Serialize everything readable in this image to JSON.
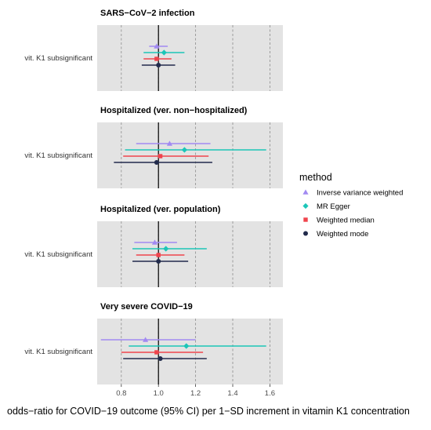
{
  "chart_data": {
    "type": "forest",
    "xlabel": "odds−ratio for COVID−19 outcome (95% CI) per 1−SD increment in vitamin K1 concentration",
    "xlim": [
      0.67,
      1.67
    ],
    "x_ticks": [
      0.8,
      1.0,
      1.2,
      1.4,
      1.6
    ],
    "x_tick_labels": [
      "0.8",
      "1.0",
      "1.2",
      "1.4",
      "1.6"
    ],
    "reference_line": 1.0,
    "grid": true,
    "legend_placement": "right",
    "legend_title": "method",
    "methods": [
      {
        "name": "Inverse variance weighted",
        "color": "#A28AF2",
        "marker": "triangle"
      },
      {
        "name": "MR Egger",
        "color": "#1CC6B8",
        "marker": "diamond"
      },
      {
        "name": "Weighted median",
        "color": "#F0444D",
        "marker": "square"
      },
      {
        "name": "Weighted mode",
        "color": "#222B4C",
        "marker": "circle"
      }
    ],
    "panels": [
      {
        "title": "SARS−CoV−2 infection",
        "row_label": "vit. K1 subsignificant",
        "estimates": [
          {
            "method": "Inverse variance weighted",
            "or": 0.99,
            "lo": 0.95,
            "hi": 1.05
          },
          {
            "method": "MR Egger",
            "or": 1.03,
            "lo": 0.92,
            "hi": 1.14
          },
          {
            "method": "Weighted median",
            "or": 0.99,
            "lo": 0.92,
            "hi": 1.07
          },
          {
            "method": "Weighted mode",
            "or": 1.0,
            "lo": 0.91,
            "hi": 1.09
          }
        ]
      },
      {
        "title": "Hospitalized (ver. non−hospitalized)",
        "row_label": "vit. K1 subsignificant",
        "estimates": [
          {
            "method": "Inverse variance weighted",
            "or": 1.06,
            "lo": 0.88,
            "hi": 1.28
          },
          {
            "method": "MR Egger",
            "or": 1.14,
            "lo": 0.82,
            "hi": 1.58
          },
          {
            "method": "Weighted median",
            "or": 1.01,
            "lo": 0.81,
            "hi": 1.27
          },
          {
            "method": "Weighted mode",
            "or": 0.99,
            "lo": 0.76,
            "hi": 1.29
          }
        ]
      },
      {
        "title": "Hospitalized (ver. population)",
        "row_label": "vit. K1 subsignificant",
        "estimates": [
          {
            "method": "Inverse variance weighted",
            "or": 0.98,
            "lo": 0.87,
            "hi": 1.1
          },
          {
            "method": "MR Egger",
            "or": 1.04,
            "lo": 0.86,
            "hi": 1.26
          },
          {
            "method": "Weighted median",
            "or": 1.0,
            "lo": 0.88,
            "hi": 1.14
          },
          {
            "method": "Weighted mode",
            "or": 1.0,
            "lo": 0.86,
            "hi": 1.16
          }
        ]
      },
      {
        "title": "Very severe COVID−19",
        "row_label": "vit. K1 subsignificant",
        "estimates": [
          {
            "method": "Inverse variance weighted",
            "or": 0.93,
            "lo": 0.69,
            "hi": 1.2
          },
          {
            "method": "MR Egger",
            "or": 1.15,
            "lo": 0.84,
            "hi": 1.58
          },
          {
            "method": "Weighted median",
            "or": 0.99,
            "lo": 0.8,
            "hi": 1.24
          },
          {
            "method": "Weighted mode",
            "or": 1.01,
            "lo": 0.81,
            "hi": 1.26
          }
        ]
      }
    ]
  }
}
